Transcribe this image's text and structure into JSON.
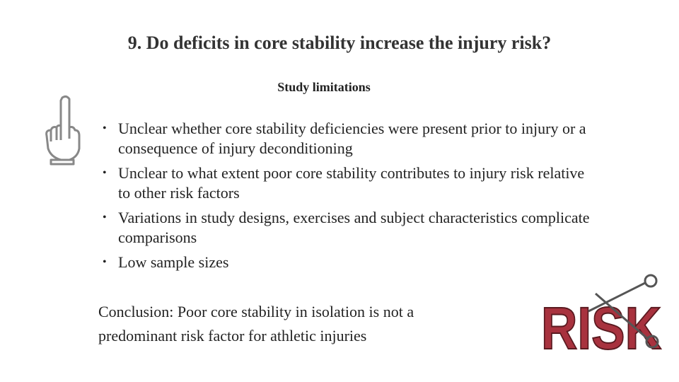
{
  "header": {
    "title": "9. Do deficits in core stability increase the injury risk?",
    "subtitle": "Study limitations"
  },
  "bullets": [
    "Unclear whether core stability deficiencies were present prior to injury or a consequence of injury deconditioning",
    "Unclear to what extent poor core stability contributes to injury risk relative to other risk factors",
    "Variations in study designs, exercises and subject characteristics complicate comparisons",
    "Low sample sizes"
  ],
  "conclusion": "Conclusion: Poor core stability in isolation is not a predominant risk factor for athletic injuries",
  "risk_graphic": {
    "label": "RISK"
  }
}
